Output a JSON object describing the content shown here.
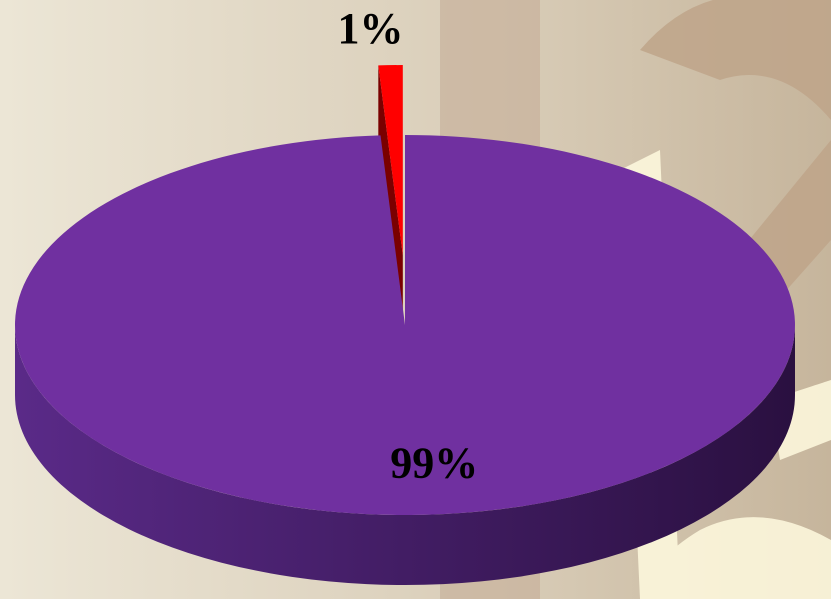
{
  "chart_data": {
    "type": "pie3d",
    "values": [
      1,
      99
    ],
    "value_labels": [
      "1%",
      "99%"
    ],
    "colors": [
      "#ff0000",
      "#7030a0"
    ]
  }
}
